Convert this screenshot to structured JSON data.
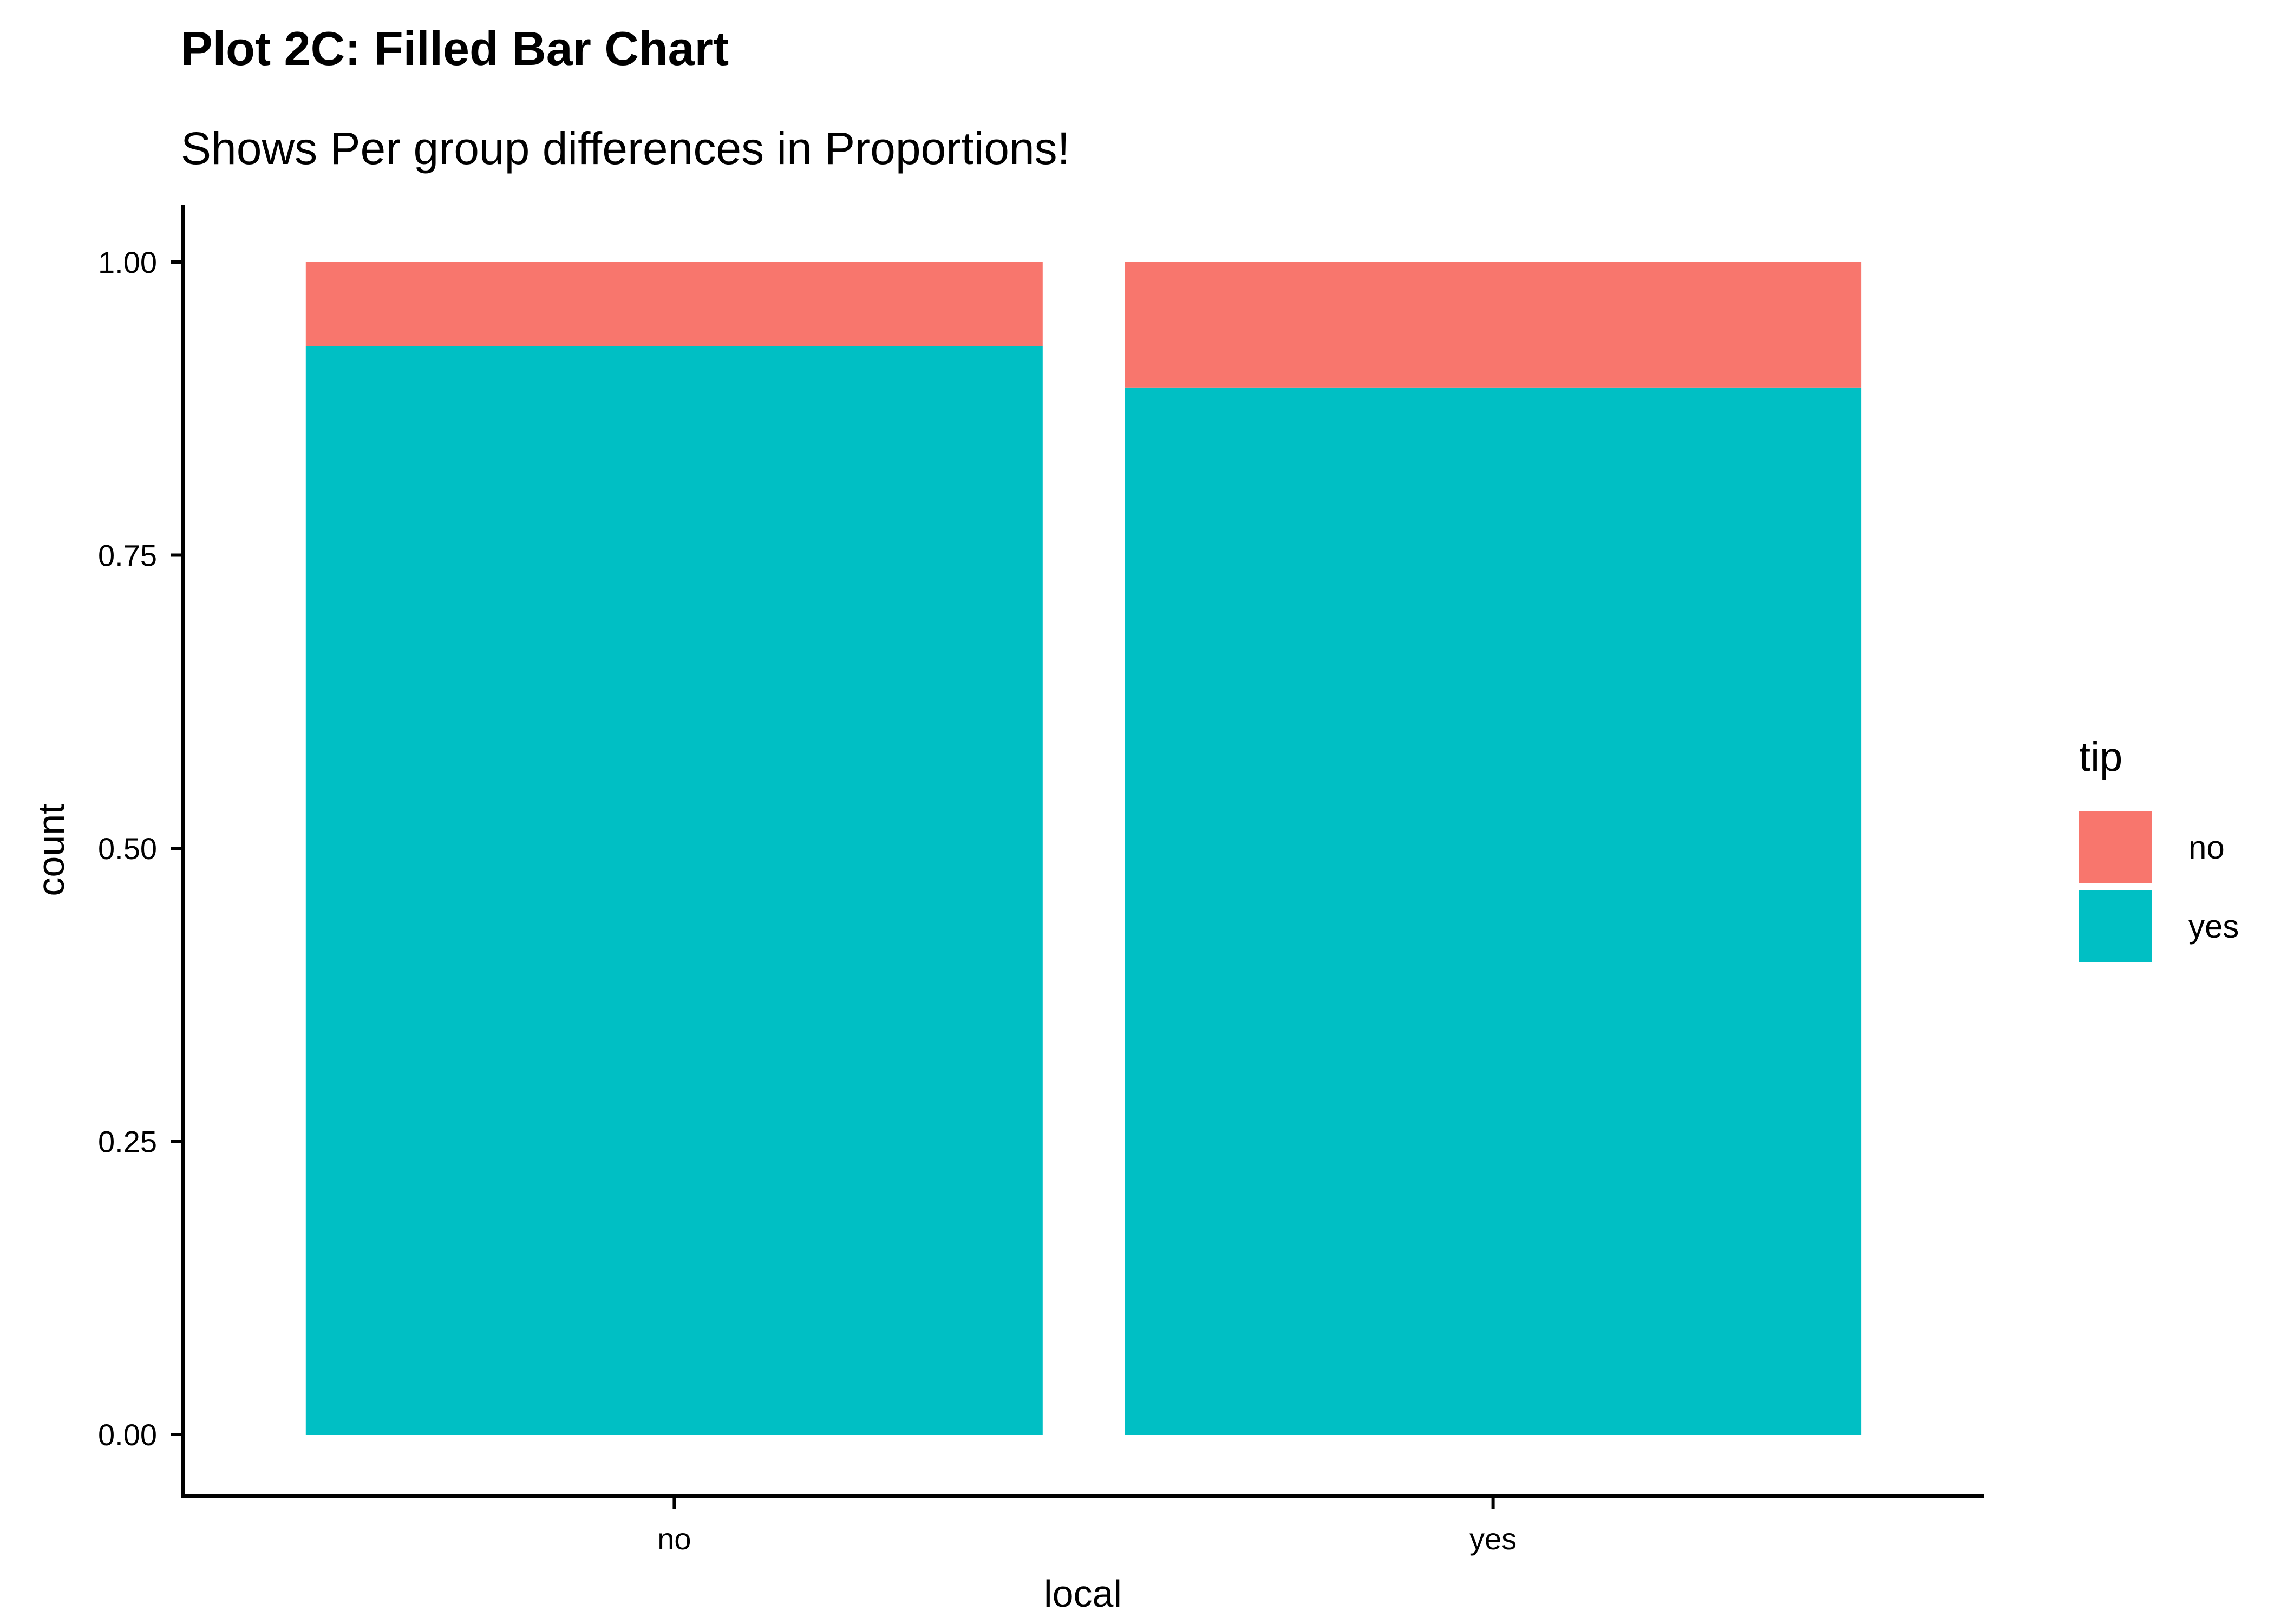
{
  "chart_data": {
    "type": "bar",
    "stacked": true,
    "position": "fill",
    "title": "Plot 2C: Filled Bar Chart",
    "subtitle": "Shows Per group differences in Proportions!",
    "xlabel": "local",
    "ylabel": "count",
    "categories": [
      "no",
      "yes"
    ],
    "ylim": [
      0,
      1
    ],
    "yticks": [
      0,
      0.25,
      0.5,
      0.75,
      1
    ],
    "ytick_labels": [
      "0.00",
      "0.25",
      "0.50",
      "0.75",
      "1.00"
    ],
    "grid": false,
    "legend": {
      "title": "tip",
      "placement": "right"
    },
    "series": [
      {
        "name": "no",
        "color": "#F8766D",
        "values": [
          0.072,
          0.107
        ]
      },
      {
        "name": "yes",
        "color": "#00BFC4",
        "values": [
          0.928,
          0.893
        ]
      }
    ]
  }
}
